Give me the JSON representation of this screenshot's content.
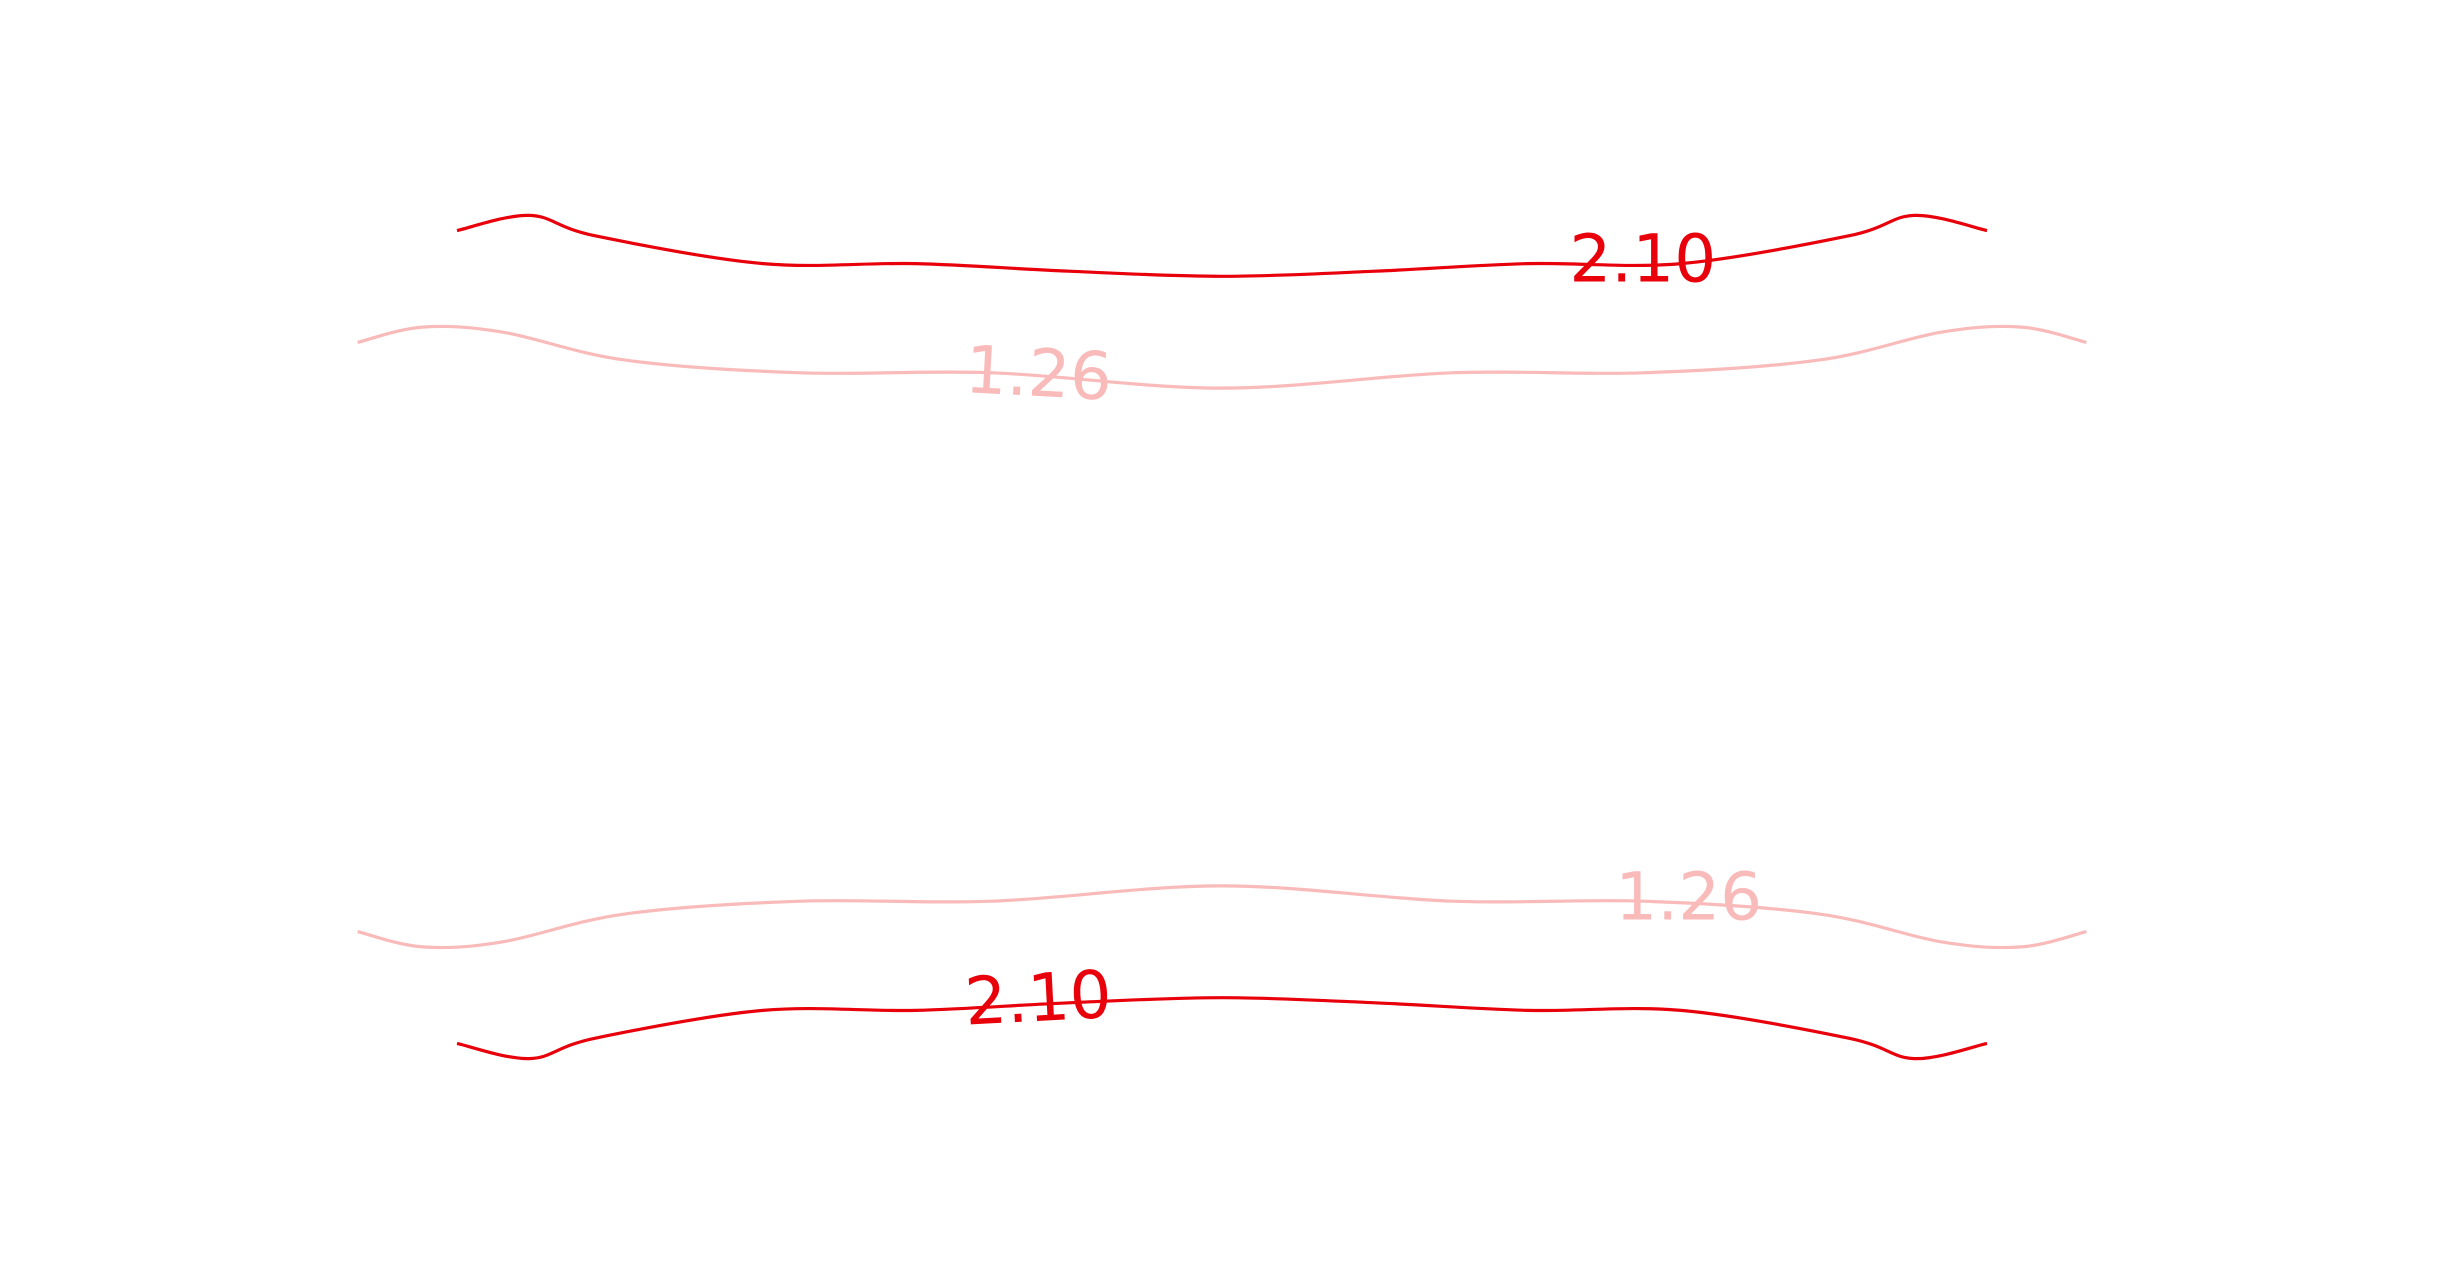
{
  "chart_data": {
    "type": "contour",
    "axes_visible": false,
    "grid": false,
    "levels": [
      {
        "value": 2.1,
        "label": "2.10",
        "color": "#e8000b",
        "contours": [
          {
            "name": "top",
            "points": [
              [
                -1.0,
                0.8
              ],
              [
                -0.905,
                0.83
              ],
              [
                -0.82,
                0.79
              ],
              [
                -0.6,
                0.735
              ],
              [
                -0.4,
                0.735
              ],
              [
                -0.2,
                0.72
              ],
              [
                0.0,
                0.71
              ],
              [
                0.2,
                0.72
              ],
              [
                0.4,
                0.735
              ],
              [
                0.6,
                0.735
              ],
              [
                0.82,
                0.79
              ],
              [
                0.905,
                0.83
              ],
              [
                1.0,
                0.8
              ]
            ],
            "label_at": [
              0.55,
              0.735
            ],
            "label_rotation": 0
          },
          {
            "name": "bottom",
            "points": [
              [
                -1.0,
                -0.8
              ],
              [
                -0.905,
                -0.83
              ],
              [
                -0.82,
                -0.79
              ],
              [
                -0.6,
                -0.735
              ],
              [
                -0.4,
                -0.735
              ],
              [
                -0.2,
                -0.72
              ],
              [
                0.0,
                -0.71
              ],
              [
                0.2,
                -0.72
              ],
              [
                0.4,
                -0.735
              ],
              [
                0.6,
                -0.735
              ],
              [
                0.82,
                -0.79
              ],
              [
                0.905,
                -0.83
              ],
              [
                1.0,
                -0.8
              ]
            ],
            "label_at": [
              -0.24,
              -0.72
            ],
            "label_rotation": -3
          }
        ]
      },
      {
        "value": 1.26,
        "label": "1.26",
        "color": "#f9baba",
        "contours": [
          {
            "name": "upper",
            "points": [
              [
                -1.13,
                0.58
              ],
              [
                -1.045,
                0.61
              ],
              [
                -0.94,
                0.6
              ],
              [
                -0.78,
                0.545
              ],
              [
                -0.55,
                0.52
              ],
              [
                -0.3,
                0.52
              ],
              [
                0.0,
                0.49
              ],
              [
                0.3,
                0.52
              ],
              [
                0.55,
                0.52
              ],
              [
                0.78,
                0.545
              ],
              [
                0.94,
                0.6
              ],
              [
                1.045,
                0.61
              ],
              [
                1.13,
                0.58
              ]
            ],
            "label_at": [
              -0.24,
              0.51
            ],
            "label_rotation": 3
          },
          {
            "name": "lower",
            "points": [
              [
                -1.13,
                -0.58
              ],
              [
                -1.045,
                -0.61
              ],
              [
                -0.94,
                -0.6
              ],
              [
                -0.78,
                -0.545
              ],
              [
                -0.55,
                -0.52
              ],
              [
                -0.3,
                -0.52
              ],
              [
                0.0,
                -0.49
              ],
              [
                0.3,
                -0.52
              ],
              [
                0.55,
                -0.52
              ],
              [
                0.78,
                -0.545
              ],
              [
                0.94,
                -0.6
              ],
              [
                1.045,
                -0.61
              ],
              [
                1.13,
                -0.58
              ]
            ],
            "label_at": [
              0.61,
              -0.52
            ],
            "label_rotation": 0
          }
        ]
      }
    ]
  }
}
